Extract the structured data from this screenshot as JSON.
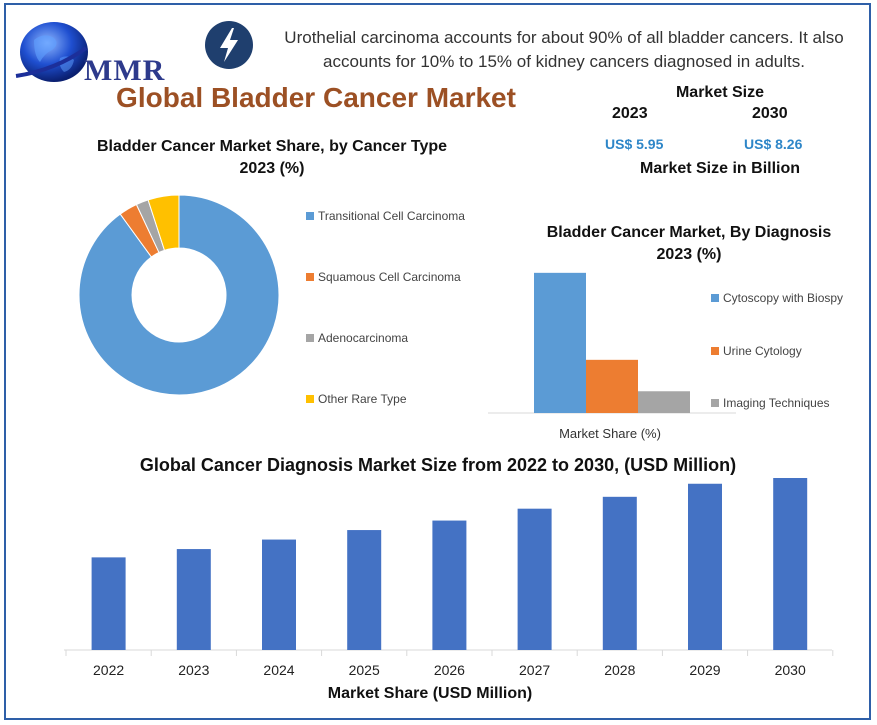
{
  "header": {
    "logo_text": "MMR",
    "info_text": "Urothelial carcinoma accounts for about 90% of all bladder cancers. It also accounts for 10% to 15% of kidney cancers diagnosed in adults.",
    "title": "Global Bladder Cancer Market"
  },
  "market_size": {
    "title": "Market Size",
    "year_a": "2023",
    "year_b": "2030",
    "value_a": "US$ 5.95",
    "value_b": "US$ 8.26",
    "footer": "Market Size in Billion"
  },
  "colors": {
    "blue": "#5b9bd5",
    "orange": "#ed7d31",
    "gray": "#a5a5a5",
    "yellow": "#ffc000",
    "bar_blue": "#4472c4",
    "title_brown": "#9c5024",
    "accent_blue": "#2e86c8"
  },
  "chart_data": [
    {
      "type": "pie",
      "subtype": "donut",
      "title": "Bladder Cancer Market Share, by Cancer Type 2023 (%)",
      "categories": [
        "Transitional Cell Carcinoma",
        "Squamous Cell Carcinoma",
        "Adenocarcinoma",
        "Other Rare Type"
      ],
      "values": [
        90,
        3,
        2,
        5
      ],
      "legend_position": "right"
    },
    {
      "type": "bar",
      "title": "Bladder Cancer Market, By Diagnosis 2023 (%)",
      "xlabel": "Market Share (%)",
      "categories": [
        "Cytoscopy with Biospy",
        "Urine Cytology",
        "Imaging Techniques"
      ],
      "values": [
        58,
        22,
        9
      ],
      "ylim": [
        0,
        60
      ],
      "legend_position": "right"
    },
    {
      "type": "bar",
      "title": "Global Cancer Diagnosis Market Size from 2022 to 2030, (USD Million)",
      "xlabel": "Market Share (USD Million)",
      "categories": [
        "2022",
        "2023",
        "2024",
        "2025",
        "2026",
        "2027",
        "2028",
        "2029",
        "2030"
      ],
      "values": [
        78,
        85,
        93,
        101,
        109,
        119,
        129,
        140,
        152
      ],
      "ylim": [
        0,
        160
      ],
      "grid": false
    }
  ]
}
